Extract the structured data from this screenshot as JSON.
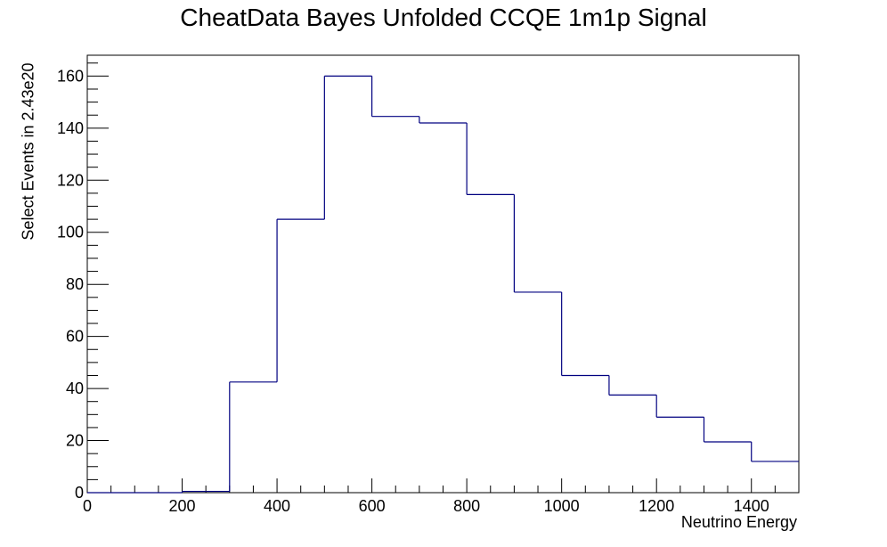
{
  "chart_data": {
    "type": "bar",
    "title": "CheatData Bayes Unfolded CCQE 1m1p Signal",
    "xlabel": "Neutrino Energy",
    "ylabel": "Select Events in 2.43e20",
    "xlim": [
      0,
      1500
    ],
    "ylim": [
      0,
      168
    ],
    "bin_width": 100,
    "x": [
      0,
      100,
      200,
      300,
      400,
      500,
      600,
      700,
      800,
      900,
      1000,
      1100,
      1200,
      1300,
      1400
    ],
    "values": [
      0,
      0,
      0.5,
      42.5,
      105,
      160,
      144.5,
      142,
      114.5,
      77,
      45,
      37.5,
      29,
      19.5,
      12
    ],
    "xticks": [
      0,
      200,
      400,
      600,
      800,
      1000,
      1200,
      1400
    ],
    "yticks": [
      0,
      20,
      40,
      60,
      80,
      100,
      120,
      140,
      160
    ],
    "line_color": "#000080",
    "grid": false,
    "legend": "none"
  }
}
